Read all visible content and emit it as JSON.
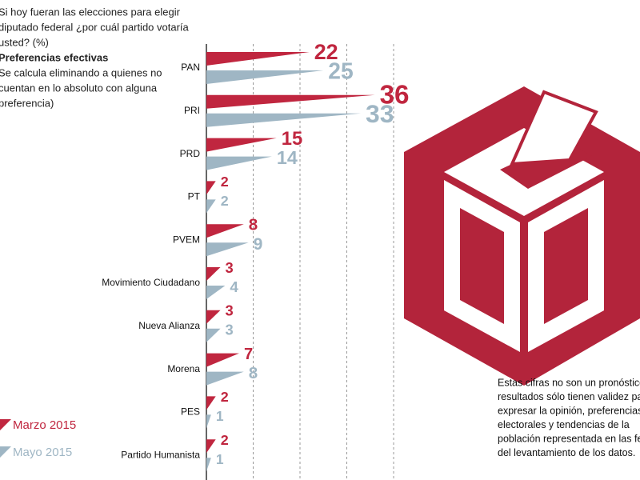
{
  "chart_data": {
    "type": "wedge-bar",
    "title": [
      "Si hoy fueran las elecciones para elegir",
      "diputado federal ¿por cuál partido votaría",
      "usted? (%)"
    ],
    "subtitle": "Preferencias efectivas",
    "description": [
      "Se calcula eliminando a quienes no",
      "cuentan en lo absoluto con alguna",
      "preferencia)"
    ],
    "categories": [
      "PAN",
      "PRI",
      "PRD",
      "PT",
      "PVEM",
      "Movimiento Ciudadano",
      "Nueva Alianza",
      "Morena",
      "PES",
      "Partido Humanista"
    ],
    "series": [
      {
        "name": "Marzo 2015",
        "color": "#c0263f",
        "values": [
          22,
          36,
          15,
          2,
          8,
          3,
          3,
          7,
          2,
          2
        ]
      },
      {
        "name": "Mayo 2015",
        "color": "#9fb6c4",
        "values": [
          25,
          33,
          14,
          2,
          9,
          4,
          3,
          8,
          1,
          1
        ]
      }
    ],
    "xlim": [
      0,
      60
    ],
    "xticks": [
      10,
      20,
      30,
      40
    ],
    "grid": true,
    "note": [
      "Estas cifras no son un pronóstico",
      "resultados sólo tienen validez par",
      "expresar la opinión, preferencias",
      "electorales y tendencias de la",
      "población representada en las fe",
      "del levantamiento de los datos."
    ]
  }
}
